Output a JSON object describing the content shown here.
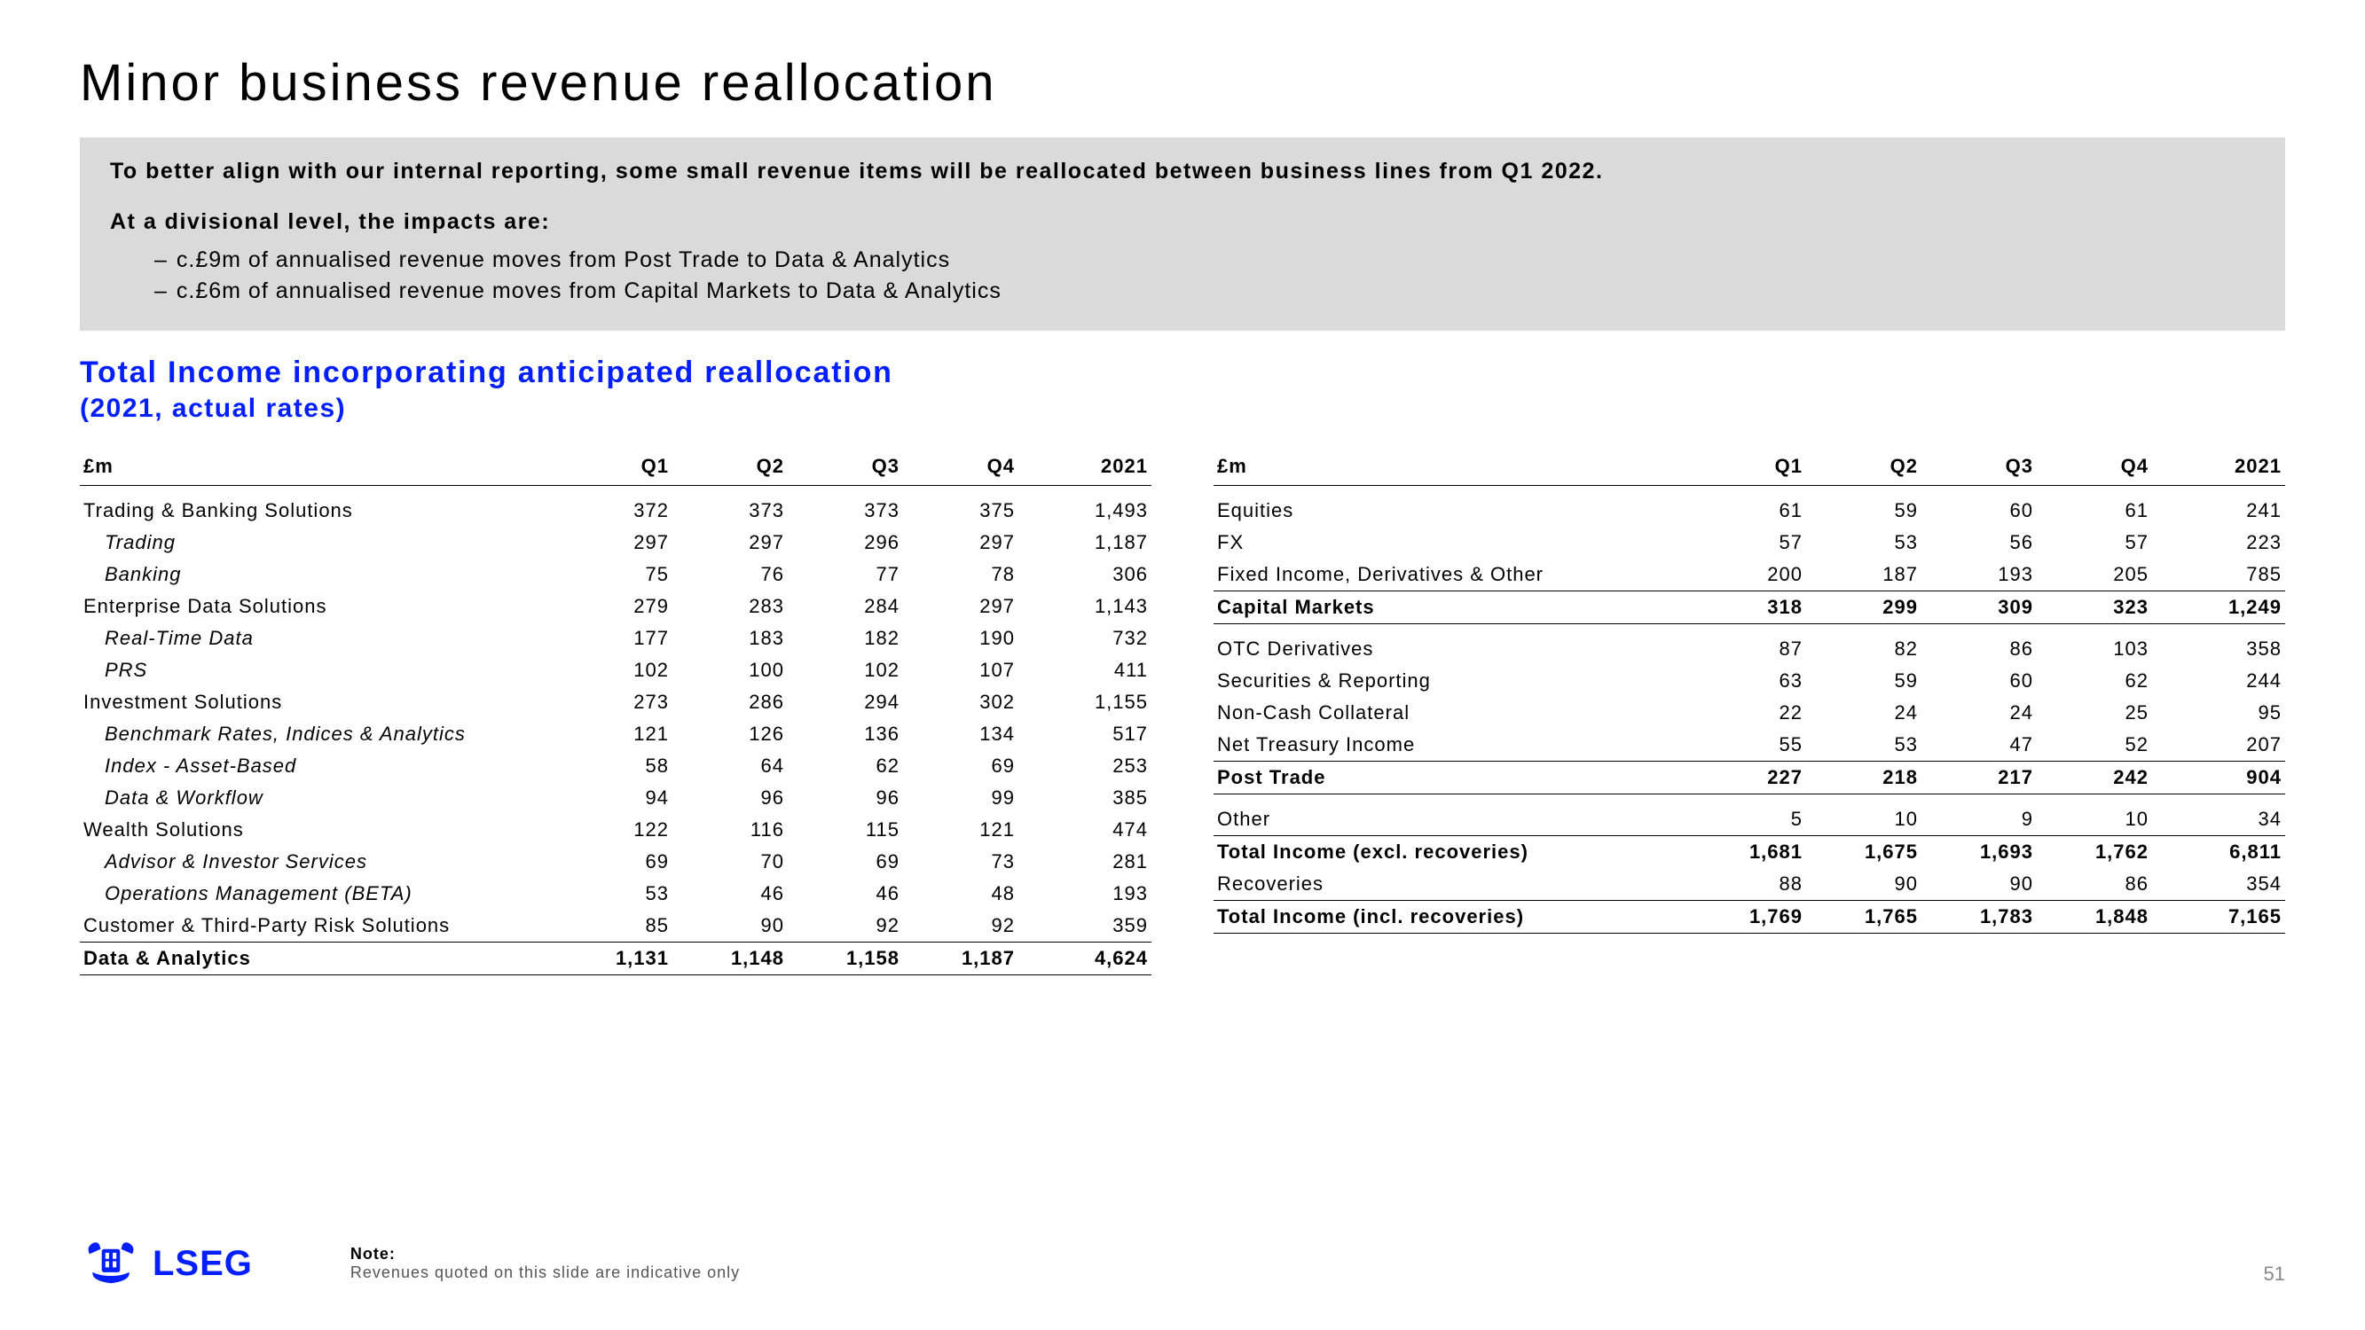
{
  "title": "Minor business revenue reallocation",
  "intro": "To better align with our internal reporting, some small revenue items will be reallocated between business lines from Q1 2022.",
  "impacts_heading": "At a divisional level, the impacts are:",
  "impacts": [
    "c.£9m of annualised revenue moves from Post Trade to Data & Analytics",
    "c.£6m of annualised revenue moves from Capital Markets to Data & Analytics"
  ],
  "section_title": "Total Income incorporating anticipated reallocation",
  "section_sub": "(2021, actual rates)",
  "currency_header": "£m",
  "columns": [
    "Q1",
    "Q2",
    "Q3",
    "Q4",
    "2021"
  ],
  "left_rows": [
    {
      "type": "spacer"
    },
    {
      "label": "Trading & Banking Solutions",
      "cells": [
        "372",
        "373",
        "373",
        "375",
        "1,493"
      ]
    },
    {
      "label": "Trading",
      "cells": [
        "297",
        "297",
        "296",
        "297",
        "1,187"
      ],
      "indent": 1
    },
    {
      "label": "Banking",
      "cells": [
        "75",
        "76",
        "77",
        "78",
        "306"
      ],
      "indent": 1
    },
    {
      "label": "Enterprise Data Solutions",
      "cells": [
        "279",
        "283",
        "284",
        "297",
        "1,143"
      ]
    },
    {
      "label": "Real-Time Data",
      "cells": [
        "177",
        "183",
        "182",
        "190",
        "732"
      ],
      "indent": 1
    },
    {
      "label": "PRS",
      "cells": [
        "102",
        "100",
        "102",
        "107",
        "411"
      ],
      "indent": 1
    },
    {
      "label": "Investment Solutions",
      "cells": [
        "273",
        "286",
        "294",
        "302",
        "1,155"
      ]
    },
    {
      "label": "Benchmark Rates, Indices & Analytics",
      "cells": [
        "121",
        "126",
        "136",
        "134",
        "517"
      ],
      "indent": 1
    },
    {
      "label": "Index - Asset-Based",
      "cells": [
        "58",
        "64",
        "62",
        "69",
        "253"
      ],
      "indent": 1
    },
    {
      "label": "Data & Workflow",
      "cells": [
        "94",
        "96",
        "96",
        "99",
        "385"
      ],
      "indent": 1
    },
    {
      "label": "Wealth Solutions",
      "cells": [
        "122",
        "116",
        "115",
        "121",
        "474"
      ]
    },
    {
      "label": "Advisor & Investor Services",
      "cells": [
        "69",
        "70",
        "69",
        "73",
        "281"
      ],
      "indent": 1
    },
    {
      "label": "Operations Management (BETA)",
      "cells": [
        "53",
        "46",
        "46",
        "48",
        "193"
      ],
      "indent": 1
    },
    {
      "label": "Customer & Third-Party Risk Solutions",
      "cells": [
        "85",
        "90",
        "92",
        "92",
        "359"
      ],
      "underline": true
    },
    {
      "label": "Data & Analytics",
      "cells": [
        "1,131",
        "1,148",
        "1,158",
        "1,187",
        "4,624"
      ],
      "bold": true,
      "underline": true
    }
  ],
  "right_rows": [
    {
      "type": "spacer"
    },
    {
      "label": "Equities",
      "cells": [
        "61",
        "59",
        "60",
        "61",
        "241"
      ]
    },
    {
      "label": "FX",
      "cells": [
        "57",
        "53",
        "56",
        "57",
        "223"
      ]
    },
    {
      "label": "Fixed Income, Derivatives & Other",
      "cells": [
        "200",
        "187",
        "193",
        "205",
        "785"
      ],
      "underline": true
    },
    {
      "label": "Capital Markets",
      "cells": [
        "318",
        "299",
        "309",
        "323",
        "1,249"
      ],
      "bold": true,
      "underline": true
    },
    {
      "type": "spacer"
    },
    {
      "label": "OTC Derivatives",
      "cells": [
        "87",
        "82",
        "86",
        "103",
        "358"
      ]
    },
    {
      "label": "Securities & Reporting",
      "cells": [
        "63",
        "59",
        "60",
        "62",
        "244"
      ]
    },
    {
      "label": "Non-Cash Collateral",
      "cells": [
        "22",
        "24",
        "24",
        "25",
        "95"
      ]
    },
    {
      "label": "Net Treasury Income",
      "cells": [
        "55",
        "53",
        "47",
        "52",
        "207"
      ],
      "underline": true
    },
    {
      "label": "Post Trade",
      "cells": [
        "227",
        "218",
        "217",
        "242",
        "904"
      ],
      "bold": true,
      "underline": true
    },
    {
      "type": "spacer"
    },
    {
      "label": "Other",
      "cells": [
        "5",
        "10",
        "9",
        "10",
        "34"
      ],
      "underline": true
    },
    {
      "label": "Total Income (excl. recoveries)",
      "cells": [
        "1,681",
        "1,675",
        "1,693",
        "1,762",
        "6,811"
      ],
      "bold": true
    },
    {
      "label": "Recoveries",
      "cells": [
        "88",
        "90",
        "90",
        "86",
        "354"
      ],
      "underline": true
    },
    {
      "label": "Total Income (incl. recoveries)",
      "cells": [
        "1,769",
        "1,765",
        "1,783",
        "1,848",
        "7,165"
      ],
      "bold": true,
      "underline": true
    }
  ],
  "logo_text": "LSEG",
  "note_heading": "Note:",
  "note_body": "Revenues quoted on this slide are indicative only",
  "page_number": "51",
  "colors": {
    "accent": "#001eff",
    "box_bg": "#dadada",
    "text": "#000000",
    "muted": "#888888"
  }
}
